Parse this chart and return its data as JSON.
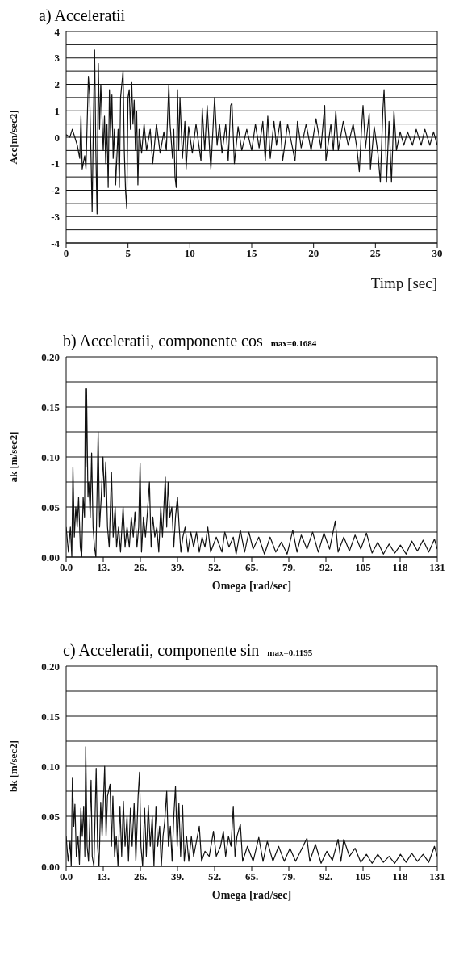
{
  "chart_data": [
    {
      "type": "line",
      "title": "a) Acceleratii",
      "xlabel": "Timp [sec]",
      "ylabel": "Acc[m/sec2]",
      "color": "#111111",
      "grid": "y",
      "xlim": [
        0,
        30
      ],
      "ylim": [
        -4,
        4
      ],
      "xticks": [
        0,
        5,
        10,
        15,
        20,
        25,
        30
      ],
      "yticks": [
        -4,
        {
          "value": -3.5,
          "label": null
        },
        -3,
        {
          "value": -2.5,
          "label": null
        },
        -2,
        {
          "value": -1.5,
          "label": null
        },
        -1,
        {
          "value": -0.5,
          "label": null
        },
        0,
        {
          "value": 0.5,
          "label": null
        },
        1,
        {
          "value": 1.5,
          "label": null
        },
        2,
        {
          "value": 2.5,
          "label": null
        },
        3,
        {
          "value": 3.5,
          "label": null
        },
        4
      ],
      "x": [
        0,
        0.3,
        0.5,
        0.7,
        0.9,
        1.1,
        1.2,
        1.3,
        1.5,
        1.6,
        1.8,
        1.9,
        2.0,
        2.1,
        2.2,
        2.3,
        2.4,
        2.5,
        2.6,
        2.7,
        2.8,
        3.0,
        3.1,
        3.2,
        3.3,
        3.4,
        3.5,
        3.6,
        3.7,
        3.8,
        3.9,
        4.0,
        4.2,
        4.3,
        4.4,
        4.6,
        4.7,
        4.8,
        4.9,
        5.0,
        5.1,
        5.2,
        5.3,
        5.4,
        5.5,
        5.6,
        5.7,
        5.8,
        5.9,
        6.1,
        6.3,
        6.5,
        6.8,
        7.0,
        7.3,
        7.6,
        7.9,
        8.1,
        8.3,
        8.4,
        8.6,
        8.7,
        8.8,
        8.9,
        9.0,
        9.1,
        9.2,
        9.4,
        9.6,
        9.7,
        9.9,
        10.2,
        10.5,
        10.9,
        11.0,
        11.2,
        11.4,
        11.6,
        11.7,
        11.9,
        12.0,
        12.2,
        12.4,
        12.6,
        12.9,
        13.1,
        13.3,
        13.4,
        13.6,
        13.9,
        14.2,
        14.6,
        15.0,
        15.3,
        15.6,
        15.9,
        16.1,
        16.3,
        16.5,
        16.8,
        17.0,
        17.3,
        17.5,
        17.9,
        18.3,
        18.5,
        18.7,
        19.0,
        19.4,
        19.8,
        20.2,
        20.6,
        20.9,
        21.0,
        21.4,
        21.6,
        21.8,
        22.0,
        22.4,
        22.8,
        23.2,
        23.5,
        23.7,
        23.9,
        24.0,
        24.2,
        24.5,
        24.6,
        24.9,
        25.2,
        25.4,
        25.6,
        25.7,
        25.8,
        25.9,
        26.1,
        26.3,
        26.5,
        26.7,
        27.0,
        27.3,
        27.6,
        28.0,
        28.3,
        28.7,
        29.0,
        29.4,
        29.7,
        30.0
      ],
      "values": [
        0.1,
        0,
        0.3,
        0,
        -0.3,
        -0.8,
        0.8,
        -1.2,
        -0.7,
        -1.2,
        2.3,
        1.6,
        -0.5,
        -2.8,
        0.5,
        3.3,
        -0.5,
        -2.9,
        2.8,
        0.3,
        2.0,
        -0.5,
        0.8,
        -1.0,
        0.5,
        -1.9,
        1.8,
        0,
        1.6,
        -0.8,
        0.3,
        -1.8,
        0.3,
        -1.9,
        1.5,
        2.5,
        -0.5,
        -2.0,
        -2.7,
        1.5,
        1.8,
        0.3,
        2.1,
        0.5,
        1.4,
        -0.5,
        1.0,
        -1.8,
        0.3,
        -0.6,
        0.5,
        -0.5,
        0.3,
        -1.0,
        0.5,
        -0.6,
        0.2,
        -0.5,
        2.0,
        0.5,
        -0.8,
        0.3,
        -1.5,
        -1.9,
        1.8,
        -0.5,
        1.5,
        -0.8,
        0.6,
        -1.2,
        0.4,
        -0.6,
        0.5,
        -0.9,
        1.1,
        -0.5,
        1.2,
        -0.5,
        -1.2,
        0.6,
        1.5,
        -0.3,
        0.5,
        -0.6,
        0.5,
        -0.9,
        1.2,
        1.3,
        -1.0,
        0.4,
        -0.5,
        0.3,
        -0.5,
        0.5,
        -0.4,
        0.6,
        -0.9,
        0.8,
        -0.8,
        0.6,
        -0.3,
        0.6,
        -0.9,
        0.5,
        -0.4,
        -0.9,
        0.6,
        -0.4,
        0.5,
        -0.5,
        0.7,
        -0.4,
        1.2,
        -0.9,
        0.5,
        -0.5,
        1.0,
        -0.5,
        0.6,
        -0.3,
        0.5,
        -0.4,
        -1.3,
        0.5,
        1.2,
        -0.4,
        0.9,
        -1.2,
        0.4,
        -0.6,
        -1.7,
        1.0,
        1.8,
        0.5,
        -1.7,
        0.6,
        -1.7,
        1.0,
        -0.5,
        0.2,
        -0.3,
        0.2,
        -0.3,
        0.3,
        -0.3,
        0.3,
        -0.3,
        0.2,
        -0.3
      ]
    },
    {
      "type": "line",
      "title": "b) Acceleratii, componente cos",
      "annotations": [
        "max=0.1684"
      ],
      "xlabel": "Omega [rad/sec]",
      "ylabel": "ak [m/sec2]",
      "color": "#111111",
      "grid": "y",
      "xlim": [
        0,
        131
      ],
      "ylim": [
        0,
        0.2
      ],
      "xticks": [
        {
          "value": 0,
          "label": "0.0"
        },
        {
          "value": 13.1,
          "label": "13."
        },
        {
          "value": 26.2,
          "label": "26."
        },
        {
          "value": 39.3,
          "label": "39."
        },
        {
          "value": 52.4,
          "label": "52."
        },
        {
          "value": 65.5,
          "label": "65."
        },
        {
          "value": 78.6,
          "label": "79."
        },
        {
          "value": 91.7,
          "label": "92."
        },
        {
          "value": 104.8,
          "label": "105"
        },
        {
          "value": 117.9,
          "label": "118"
        },
        131
      ],
      "yticks": [
        {
          "value": 0,
          "label": "0.00"
        },
        {
          "value": 0.025,
          "label": null
        },
        {
          "value": 0.05,
          "label": "0.05"
        },
        {
          "value": 0.075,
          "label": null
        },
        {
          "value": 0.1,
          "label": "0.10"
        },
        {
          "value": 0.125,
          "label": null
        },
        {
          "value": 0.15,
          "label": "0.15"
        },
        {
          "value": 0.175,
          "label": null
        },
        {
          "value": 0.2,
          "label": "0.20"
        }
      ],
      "x": [
        0,
        0.8,
        1.5,
        2.0,
        2.4,
        2.9,
        3.4,
        3.9,
        4.4,
        5.0,
        5.5,
        6.0,
        6.5,
        6.8,
        7.0,
        7.2,
        7.7,
        8.0,
        8.5,
        9.0,
        9.5,
        10.0,
        10.5,
        11.3,
        11.8,
        12.4,
        13.0,
        13.5,
        14.0,
        14.6,
        15.2,
        16.0,
        16.6,
        17.3,
        17.8,
        18.5,
        19.2,
        20.1,
        20.8,
        21.5,
        22.3,
        23.0,
        23.7,
        24.3,
        25.0,
        25.6,
        26.1,
        26.6,
        27.3,
        28.0,
        28.7,
        29.4,
        30.0,
        30.6,
        31.3,
        32.0,
        32.7,
        33.4,
        34.0,
        35.0,
        35.5,
        36.0,
        36.6,
        37.3,
        38.0,
        38.6,
        39.3,
        39.9,
        40.5,
        41.2,
        42.0,
        43.0,
        44.0,
        45.0,
        46.0,
        47.0,
        48.0,
        49.0,
        50.0,
        51.0,
        53.0,
        55.0,
        56.0,
        57.5,
        59.0,
        60.0,
        61.5,
        63,
        64.5,
        66,
        68,
        70,
        72,
        74,
        76,
        78,
        80,
        81.5,
        83,
        85,
        87,
        89,
        91,
        93,
        95,
        96,
        98,
        100,
        102,
        104,
        106,
        108,
        110,
        112,
        114,
        116,
        118,
        120,
        122,
        124,
        126,
        128,
        130,
        131
      ],
      "values": [
        0.03,
        0.005,
        0.03,
        0,
        0.09,
        0.02,
        0.05,
        0.03,
        0.06,
        0.01,
        0,
        0.06,
        0.04,
        0.168,
        0.09,
        0.168,
        0.06,
        0.075,
        0.04,
        0.104,
        0.03,
        0.01,
        0,
        0.125,
        0.03,
        0.06,
        0.1,
        0.06,
        0.095,
        0.03,
        0.01,
        0.085,
        0.02,
        0.05,
        0.01,
        0.03,
        0.005,
        0.05,
        0.01,
        0.03,
        0.01,
        0.04,
        0.02,
        0.045,
        0.01,
        0.03,
        0.094,
        0.005,
        0.04,
        0.02,
        0.045,
        0.075,
        0.01,
        0.04,
        0.02,
        0.03,
        0.005,
        0.05,
        0.02,
        0.08,
        0.03,
        0.075,
        0.04,
        0.05,
        0.01,
        0.04,
        0.06,
        0.03,
        0.005,
        0.02,
        0.03,
        0.005,
        0.025,
        0.01,
        0.025,
        0.005,
        0.02,
        0.01,
        0.03,
        0.005,
        0.02,
        0.005,
        0.025,
        0.01,
        0.02,
        0.003,
        0.027,
        0.005,
        0.025,
        0.008,
        0.02,
        0.003,
        0.02,
        0.005,
        0.015,
        0.003,
        0.027,
        0.005,
        0.022,
        0.008,
        0.025,
        0.005,
        0.024,
        0.008,
        0.036,
        0.005,
        0.02,
        0.006,
        0.022,
        0.008,
        0.024,
        0.004,
        0.015,
        0.003,
        0.013,
        0.004,
        0.012,
        0.003,
        0.016,
        0.006,
        0.017,
        0.005,
        0.018,
        0.008
      ]
    },
    {
      "type": "line",
      "title": "c) Acceleratii, componente sin",
      "annotations": [
        "max=0.1195"
      ],
      "xlabel": "Omega [rad/sec]",
      "ylabel": "bk [m/sec2]",
      "color": "#111111",
      "grid": "y",
      "xlim": [
        0,
        131
      ],
      "ylim": [
        0,
        0.2
      ],
      "xticks": [
        {
          "value": 0,
          "label": "0.0"
        },
        {
          "value": 13.1,
          "label": "13."
        },
        {
          "value": 26.2,
          "label": "26."
        },
        {
          "value": 39.3,
          "label": "39."
        },
        {
          "value": 52.4,
          "label": "52."
        },
        {
          "value": 65.5,
          "label": "65."
        },
        {
          "value": 78.6,
          "label": "79."
        },
        {
          "value": 91.7,
          "label": "92."
        },
        {
          "value": 104.8,
          "label": "105"
        },
        {
          "value": 117.9,
          "label": "118"
        },
        131
      ],
      "yticks": [
        {
          "value": 0,
          "label": "0.00"
        },
        {
          "value": 0.025,
          "label": null
        },
        {
          "value": 0.05,
          "label": "0.05"
        },
        {
          "value": 0.075,
          "label": null
        },
        {
          "value": 0.1,
          "label": "0.10"
        },
        {
          "value": 0.125,
          "label": null
        },
        {
          "value": 0.15,
          "label": "0.15"
        },
        {
          "value": 0.175,
          "label": null
        },
        {
          "value": 0.2,
          "label": "0.20"
        }
      ],
      "x": [
        0,
        0.7,
        1.4,
        1.8,
        2.2,
        2.7,
        3.1,
        3.6,
        4.2,
        4.7,
        5.2,
        5.7,
        6.2,
        6.6,
        6.9,
        7.4,
        7.9,
        8.8,
        9.2,
        9.8,
        10.6,
        11.1,
        11.6,
        12.2,
        12.7,
        13.6,
        14.1,
        14.6,
        15.5,
        16.0,
        16.5,
        17.1,
        17.7,
        18.3,
        19.0,
        19.6,
        20.2,
        20.8,
        21.5,
        22.0,
        22.7,
        23.3,
        24.0,
        24.6,
        25.4,
        25.9,
        26.4,
        27.0,
        27.7,
        28.3,
        29.0,
        29.7,
        30.4,
        31.0,
        31.7,
        32.3,
        33.0,
        33.6,
        34.2,
        34.8,
        35.5,
        36.1,
        36.8,
        37.4,
        38.0,
        38.6,
        39.2,
        39.8,
        40.4,
        41.1,
        41.7,
        42.5,
        43.3,
        44.2,
        45.0,
        46.0,
        47.0,
        47.8,
        49,
        50.5,
        52.0,
        53,
        54.5,
        55.5,
        56.3,
        57.3,
        58.2,
        59.0,
        59.6,
        60.3,
        61.5,
        62.3,
        64,
        66,
        68,
        69.5,
        71,
        73,
        75,
        77,
        79,
        81,
        85,
        86,
        88,
        90,
        92,
        94,
        96,
        97,
        98,
        100,
        102,
        104,
        106,
        108,
        110,
        112,
        114,
        116,
        118,
        120,
        122,
        124,
        126,
        128,
        130,
        131
      ],
      "values": [
        0.03,
        0.005,
        0.025,
        0,
        0.088,
        0.04,
        0.062,
        0.01,
        0.03,
        0.002,
        0.058,
        0.03,
        0.06,
        0.01,
        0.1195,
        0.02,
        0.005,
        0.086,
        0.01,
        0,
        0.098,
        0.02,
        0,
        0.064,
        0.03,
        0.1,
        0.03,
        0.07,
        0.082,
        0.02,
        0.07,
        0.01,
        0.03,
        0,
        0.06,
        0.01,
        0.065,
        0.02,
        0.05,
        0.005,
        0.058,
        0.02,
        0.063,
        0.005,
        0.07,
        0.094,
        0.02,
        0,
        0.058,
        0.01,
        0.061,
        0.02,
        0.05,
        0,
        0.06,
        0.02,
        0.04,
        0,
        0.03,
        0.045,
        0.075,
        0.02,
        0.04,
        0.005,
        0.05,
        0.08,
        0.02,
        0.063,
        0.01,
        0.061,
        0.005,
        0.03,
        0.005,
        0.03,
        0.01,
        0.025,
        0.04,
        0.005,
        0.015,
        0.01,
        0.035,
        0.01,
        0.02,
        0.035,
        0.01,
        0.03,
        0.02,
        0.06,
        0.01,
        0.03,
        0.042,
        0.005,
        0.02,
        0.005,
        0.029,
        0.005,
        0.025,
        0.005,
        0.02,
        0.005,
        0.018,
        0.005,
        0.028,
        0.005,
        0.022,
        0.003,
        0.015,
        0.006,
        0.027,
        0.005,
        0.027,
        0.01,
        0.018,
        0.004,
        0.012,
        0.003,
        0.012,
        0.004,
        0.01,
        0.003,
        0.012,
        0.004,
        0.013,
        0.005,
        0.012,
        0.004,
        0.02,
        0.01
      ]
    }
  ]
}
